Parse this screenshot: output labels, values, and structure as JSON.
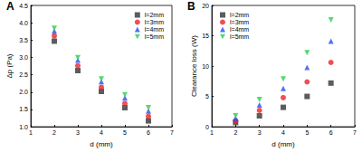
{
  "chart_data": [
    {
      "type": "scatter",
      "title": "A",
      "x_label": "d (mm)",
      "y_label": "Δp (Pa)",
      "x": [
        2,
        3,
        4,
        5,
        6
      ],
      "series": [
        {
          "name": "l=2mm",
          "color": "#333333",
          "marker": "square",
          "values": [
            3.47,
            2.62,
            2.02,
            1.55,
            1.17
          ]
        },
        {
          "name": "l=3mm",
          "color": "#e8242a",
          "marker": "circle",
          "values": [
            3.62,
            2.76,
            2.14,
            1.67,
            1.3
          ]
        },
        {
          "name": "l=4mm",
          "color": "#2a4ff0",
          "marker": "triangle",
          "values": [
            3.76,
            2.92,
            2.3,
            1.83,
            1.45
          ]
        },
        {
          "name": "l=5mm",
          "color": "#2bd04d",
          "marker": "triangle-down",
          "values": [
            3.84,
            2.99,
            2.38,
            1.92,
            1.55
          ]
        }
      ],
      "xlim": [
        1,
        7
      ],
      "xticks": [
        1,
        2,
        3,
        4,
        5,
        6,
        7
      ],
      "ylim": [
        1.0,
        4.5
      ],
      "yticks": [
        {
          "value": 1.0,
          "label": "1.0"
        },
        {
          "value": 1.5,
          "label": "1.5"
        },
        {
          "value": 2.0,
          "label": "2.0"
        },
        {
          "value": 2.5,
          "label": "2.5"
        },
        {
          "value": 3.0,
          "label": "3.0"
        },
        {
          "value": 3.5,
          "label": "3.5"
        },
        {
          "value": 4.0,
          "label": "4.0"
        },
        {
          "value": 4.5,
          "label": "4.5"
        }
      ],
      "grid": false,
      "legend": "upper right"
    },
    {
      "type": "scatter",
      "title": "B",
      "x_label": "d (mm)",
      "y_label": "Clearance loss (W)",
      "x": [
        2,
        3,
        4,
        5,
        6
      ],
      "series": [
        {
          "name": "l=2mm",
          "color": "#333333",
          "marker": "square",
          "values": [
            0.7,
            1.8,
            3.2,
            5.0,
            7.2
          ]
        },
        {
          "name": "l=3mm",
          "color": "#e8242a",
          "marker": "circle",
          "values": [
            1.0,
            2.7,
            4.8,
            7.4,
            10.6
          ]
        },
        {
          "name": "l=4mm",
          "color": "#2a4ff0",
          "marker": "triangle",
          "values": [
            1.4,
            3.6,
            6.3,
            9.8,
            14.1
          ]
        },
        {
          "name": "l=5mm",
          "color": "#2bd04d",
          "marker": "triangle-down",
          "values": [
            1.8,
            4.5,
            7.9,
            12.2,
            17.6
          ]
        }
      ],
      "xlim": [
        1,
        7
      ],
      "xticks": [
        1,
        2,
        3,
        4,
        5,
        6,
        7
      ],
      "ylim": [
        0,
        20
      ],
      "yticks": [
        0,
        5,
        10,
        15,
        20
      ],
      "grid": false,
      "legend": "upper left"
    }
  ]
}
